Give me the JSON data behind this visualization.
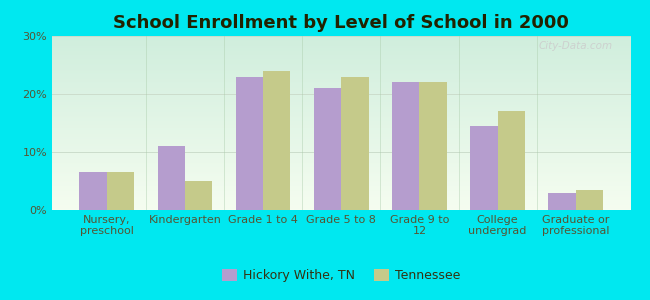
{
  "title": "School Enrollment by Level of School in 2000",
  "categories": [
    "Nursery,\npreschool",
    "Kindergarten",
    "Grade 1 to 4",
    "Grade 5 to 8",
    "Grade 9 to\n12",
    "College\nundergrad",
    "Graduate or\nprofessional"
  ],
  "hickory_values": [
    6.5,
    11.0,
    23.0,
    21.0,
    22.0,
    14.5,
    3.0
  ],
  "tennessee_values": [
    6.5,
    5.0,
    24.0,
    23.0,
    22.0,
    17.0,
    3.5
  ],
  "hickory_color": "#b59dce",
  "tennessee_color": "#c5ca8a",
  "background_color": "#00e8f0",
  "bar_width": 0.35,
  "ylim": [
    0,
    30
  ],
  "yticks": [
    0,
    10,
    20,
    30
  ],
  "ytick_labels": [
    "0%",
    "10%",
    "20%",
    "30%"
  ],
  "legend_label_hickory": "Hickory Withe, TN",
  "legend_label_tennessee": "Tennessee",
  "title_fontsize": 13,
  "tick_fontsize": 8,
  "legend_fontsize": 9,
  "watermark": "City-Data.com"
}
